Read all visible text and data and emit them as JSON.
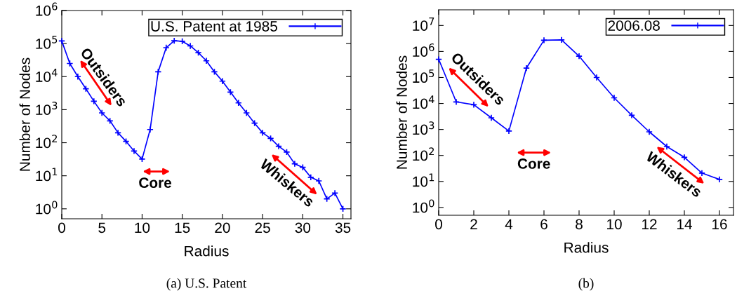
{
  "chart_data": [
    {
      "type": "line",
      "xlabel": "Radius",
      "ylabel": "Number of Nodes",
      "log": "y",
      "marker": "cross",
      "line_style": "solid",
      "legend": "top right",
      "grid": false,
      "x": [
        0,
        1,
        2,
        3,
        4,
        5,
        6,
        7,
        8,
        9,
        10,
        11,
        12,
        13,
        14,
        15,
        16,
        17,
        18,
        19,
        20,
        21,
        22,
        23,
        24,
        25,
        26,
        27,
        28,
        29,
        30,
        31,
        32,
        33,
        34,
        35
      ],
      "series": [
        {
          "name": "U.S. Patent at 1985",
          "color": "#0000ff",
          "values": [
            120000,
            25000,
            10000,
            4300,
            1800,
            800,
            460,
            200,
            110,
            56,
            32,
            250,
            14000,
            75000,
            122000,
            117000,
            85000,
            53000,
            30000,
            14000,
            7300,
            3400,
            1600,
            800,
            390,
            200,
            135,
            78,
            52,
            23,
            18,
            9,
            7,
            2,
            3,
            1
          ]
        }
      ],
      "xlim": [
        0,
        36
      ],
      "xticks": [
        0,
        5,
        10,
        15,
        20,
        25,
        30,
        35
      ],
      "ylim": [
        0.5,
        1000000
      ],
      "yticks": [
        {
          "value": 1,
          "label": "10$^{0}$"
        },
        {
          "value": 10,
          "label": "10$^{1}$"
        },
        {
          "value": 100,
          "label": "10$^{2}$"
        },
        {
          "value": 1000,
          "label": "10$^{3}$"
        },
        {
          "value": 10000,
          "label": "10$^{4}$"
        },
        {
          "value": 100000,
          "label": "10$^{5}$"
        },
        {
          "value": 1000000,
          "label": "10$^{6}$"
        }
      ],
      "annotations": [
        "Outsiders",
        "Core",
        "Whiskers",
        "(a) U.S. Patent"
      ]
    },
    {
      "type": "line",
      "xlabel": "Radius",
      "ylabel": "Number of Nodes",
      "log": "y",
      "marker": "cross",
      "line_style": "solid",
      "legend": "top right",
      "grid": false,
      "x": [
        0,
        1,
        2,
        3,
        4,
        5,
        6,
        7,
        8,
        9,
        10,
        11,
        12,
        13,
        14,
        15,
        16
      ],
      "series": [
        {
          "name": "2006.08",
          "color": "#0000ff",
          "values": [
            500000,
            11500,
            8900,
            2800,
            870,
            230000,
            2700000,
            2800000,
            660000,
            100000,
            16500,
            3500,
            810,
            220,
            85,
            21,
            12
          ]
        }
      ],
      "xlim": [
        0,
        16.8
      ],
      "xticks": [
        0,
        2,
        4,
        6,
        8,
        10,
        12,
        14,
        16
      ],
      "ylim": [
        0.5,
        40000000
      ],
      "yticks": [
        {
          "value": 1,
          "label": "10$^{0}$"
        },
        {
          "value": 10,
          "label": "10$^{1}$"
        },
        {
          "value": 100,
          "label": "10$^{2}$"
        },
        {
          "value": 1000,
          "label": "10$^{3}$"
        },
        {
          "value": 10000,
          "label": "10$^{4}$"
        },
        {
          "value": 100000,
          "label": "10$^{5}$"
        },
        {
          "value": 1000000,
          "label": "10$^{6}$"
        },
        {
          "value": 10000000,
          "label": "10$^{7}$"
        }
      ],
      "annotations": [
        "Outsiders",
        "Core",
        "Whiskers",
        "(b)"
      ]
    }
  ]
}
